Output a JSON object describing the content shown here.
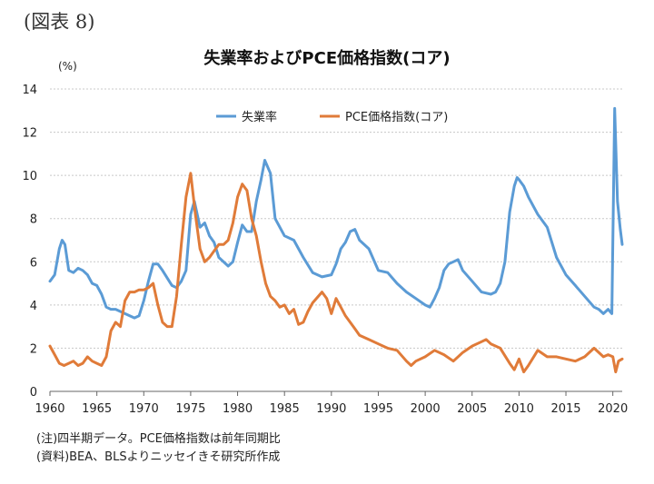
{
  "figure_label": "(図表 8)",
  "notes": [
    "(注)四半期データ。PCE価格指数は前年同期比",
    "(資料)BEA、BLSよりニッセイきそ研究所作成"
  ],
  "chart_data": {
    "type": "line",
    "title": "失業率およびPCE価格指数(コア)",
    "unit_label": "(%)",
    "xlabel": "",
    "ylabel": "",
    "xlim": [
      1960,
      2021
    ],
    "ylim": [
      0,
      14
    ],
    "yticks": [
      0,
      2,
      4,
      6,
      8,
      10,
      12,
      14
    ],
    "xticks": [
      1960,
      1965,
      1970,
      1975,
      1980,
      1985,
      1990,
      1995,
      2000,
      2005,
      2010,
      2015,
      2020
    ],
    "grid": true,
    "legend_position": "top-center",
    "series": [
      {
        "name": "失業率",
        "color": "#5b9bd5",
        "x": [
          1960,
          1960.5,
          1961,
          1961.3,
          1961.6,
          1962,
          1962.5,
          1963,
          1963.5,
          1964,
          1964.5,
          1965,
          1965.5,
          1966,
          1966.5,
          1967,
          1968,
          1969,
          1969.5,
          1970,
          1970.5,
          1971,
          1971.5,
          1972,
          1973,
          1973.5,
          1974,
          1974.5,
          1975,
          1975.4,
          1976,
          1976.5,
          1977,
          1977.5,
          1978,
          1979,
          1979.5,
          1980,
          1980.5,
          1981,
          1981.5,
          1982,
          1982.5,
          1982.9,
          1983.5,
          1984,
          1985,
          1986,
          1987,
          1988,
          1989,
          1990,
          1990.5,
          1991,
          1991.5,
          1992,
          1992.5,
          1993,
          1994,
          1995,
          1996,
          1997,
          1998,
          1999,
          2000,
          2000.5,
          2001,
          2001.5,
          2002,
          2002.5,
          2003,
          2003.5,
          2004,
          2005,
          2006,
          2007,
          2007.5,
          2008,
          2008.5,
          2009,
          2009.5,
          2009.8,
          2010,
          2010.5,
          2011,
          2012,
          2013,
          2014,
          2015,
          2016,
          2017,
          2018,
          2018.5,
          2019,
          2019.5,
          2019.9,
          2020.2,
          2020.5,
          2020.8,
          2021
        ],
        "values": [
          5.1,
          5.4,
          6.6,
          7.0,
          6.8,
          5.6,
          5.5,
          5.7,
          5.6,
          5.4,
          5.0,
          4.9,
          4.5,
          3.9,
          3.8,
          3.8,
          3.6,
          3.4,
          3.5,
          4.2,
          5.1,
          5.9,
          5.9,
          5.6,
          4.9,
          4.8,
          5.1,
          5.6,
          8.2,
          8.8,
          7.6,
          7.8,
          7.2,
          6.9,
          6.2,
          5.8,
          6.0,
          6.9,
          7.7,
          7.4,
          7.4,
          8.8,
          9.8,
          10.7,
          10.1,
          8.0,
          7.2,
          7.0,
          6.2,
          5.5,
          5.3,
          5.4,
          5.9,
          6.6,
          6.9,
          7.4,
          7.5,
          7.0,
          6.6,
          5.6,
          5.5,
          5.0,
          4.6,
          4.3,
          4.0,
          3.9,
          4.3,
          4.8,
          5.6,
          5.9,
          6.0,
          6.1,
          5.6,
          5.1,
          4.6,
          4.5,
          4.6,
          5.0,
          6.0,
          8.3,
          9.5,
          9.9,
          9.8,
          9.5,
          9.0,
          8.2,
          7.6,
          6.2,
          5.4,
          4.9,
          4.4,
          3.9,
          3.8,
          3.6,
          3.8,
          3.6,
          13.1,
          8.8,
          7.5,
          6.8
        ]
      },
      {
        "name": "PCE価格指数(コア)",
        "color": "#e07b39",
        "x": [
          1960,
          1960.5,
          1961,
          1961.5,
          1962,
          1962.5,
          1963,
          1963.5,
          1964,
          1964.5,
          1965,
          1965.5,
          1966,
          1966.5,
          1967,
          1967.5,
          1968,
          1968.5,
          1969,
          1969.5,
          1970,
          1970.5,
          1971,
          1971.5,
          1972,
          1972.5,
          1973,
          1973.5,
          1974,
          1974.5,
          1975,
          1975.5,
          1976,
          1976.5,
          1977,
          1977.5,
          1978,
          1978.5,
          1979,
          1979.5,
          1980,
          1980.5,
          1981,
          1981.5,
          1982,
          1982.5,
          1983,
          1983.5,
          1984,
          1984.5,
          1985,
          1985.5,
          1986,
          1986.5,
          1987,
          1987.5,
          1988,
          1989,
          1989.5,
          1990,
          1990.5,
          1991,
          1991.5,
          1992,
          1992.5,
          1993,
          1994,
          1995,
          1996,
          1997,
          1998,
          1998.5,
          1999,
          2000,
          2001,
          2002,
          2003,
          2004,
          2005,
          2006,
          2006.5,
          2007,
          2008,
          2009,
          2009.5,
          2010,
          2010.5,
          2011,
          2012,
          2013,
          2014,
          2015,
          2016,
          2017,
          2018,
          2019,
          2019.5,
          2020,
          2020.3,
          2020.6,
          2021
        ],
        "values": [
          2.1,
          1.7,
          1.3,
          1.2,
          1.3,
          1.4,
          1.2,
          1.3,
          1.6,
          1.4,
          1.3,
          1.2,
          1.6,
          2.8,
          3.2,
          3.0,
          4.2,
          4.6,
          4.6,
          4.7,
          4.7,
          4.8,
          5.0,
          4.0,
          3.2,
          3.0,
          3.0,
          4.4,
          6.8,
          9.0,
          10.1,
          8.2,
          6.6,
          6.0,
          6.2,
          6.5,
          6.8,
          6.8,
          7.0,
          7.8,
          9.0,
          9.6,
          9.3,
          8.0,
          7.2,
          6.0,
          5.0,
          4.4,
          4.2,
          3.9,
          4.0,
          3.6,
          3.8,
          3.1,
          3.2,
          3.7,
          4.1,
          4.6,
          4.3,
          3.6,
          4.3,
          3.9,
          3.5,
          3.2,
          2.9,
          2.6,
          2.4,
          2.2,
          2.0,
          1.9,
          1.4,
          1.2,
          1.4,
          1.6,
          1.9,
          1.7,
          1.4,
          1.8,
          2.1,
          2.3,
          2.4,
          2.2,
          2.0,
          1.3,
          1.0,
          1.5,
          0.9,
          1.2,
          1.9,
          1.6,
          1.6,
          1.5,
          1.4,
          1.6,
          2.0,
          1.6,
          1.7,
          1.6,
          0.9,
          1.4,
          1.5
        ]
      }
    ]
  }
}
